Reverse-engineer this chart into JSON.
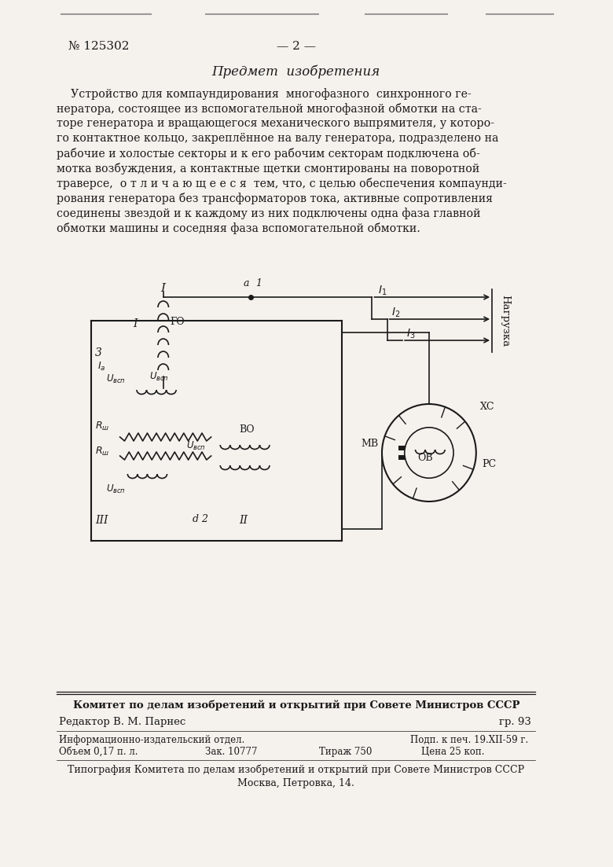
{
  "bg_color": "#f0ede8",
  "page_color": "#f5f2ed",
  "text_color": "#1a1a1a",
  "title_header": "№ 125302",
  "page_num": "— 2 —",
  "section_title": "Предмет  изобретения",
  "main_text_lines": [
    "    Устройство для компаундирования  многофазного  синхронного ге-",
    "нератора, состоящее из вспомогательной многофазной обмотки на ста-",
    "торе генератора и вращающегося механического выпрямителя, у которо-",
    "го контактное кольцо, закреплённое на валу генератора, подразделено на",
    "рабочие и холостые секторы и к его рабочим секторам подключена об-",
    "мотка возбуждения, а контактные щетки смонтированы на поворотной",
    "траверсе,  о т л и ч а ю щ е е с я  тем, что, с целью обеспечения компаунди-",
    "рования генератора без трансформаторов тока, активные сопротивления",
    "соединены звездой и к каждому из них подключены одна фаза главной",
    "обмотки машины и соседняя фаза вспомогательной обмотки."
  ],
  "footer_bold": "Комитет по делам изобретений и открытий при Совете Министров СССР",
  "footer_editor": "Редактор В. М. Парнес",
  "footer_right": "гр. 93",
  "footer_info1_left": "Информационно-издательский отдел.",
  "footer_info1_right": "Подп. к печ. 19.XII-59 г.",
  "footer_info2_left": "Объем 0,17 п. л.",
  "footer_info2_mid1": "Зак. 10777",
  "footer_info2_mid2": "Тираж 750",
  "footer_info2_right": "Цена 25 коп.",
  "footer_typo": "Типография Комитета по делам изобретений и открытий при Совете Министров СССР",
  "footer_address": "Москва, Петровка, 14."
}
